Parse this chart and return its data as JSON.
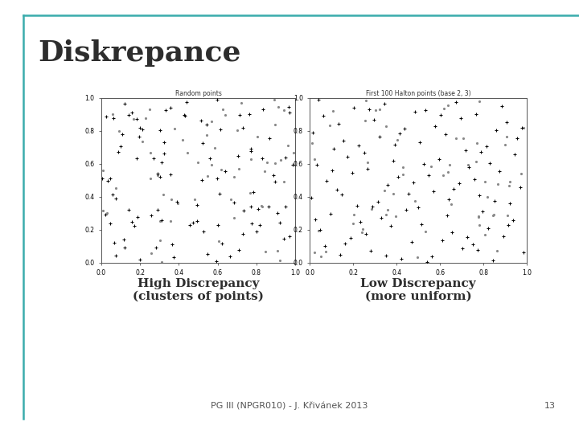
{
  "title": "Diskrepance",
  "title_fontsize": 26,
  "title_color": "#2d2d2d",
  "footer_text": "PG III (NPGR010) - J. Křivánek 2013",
  "footer_page": "13",
  "label_left": "High Discrepancy\n(clusters of points)",
  "label_right": "Low Discrepancy\n(more uniform)",
  "label_fontsize": 11,
  "plot_title_left": "Random points",
  "plot_title_right": "First 100 Halton points (base 2, 3)",
  "background_color": "#ffffff",
  "accent_color": "#3aacac",
  "seed_random": 42,
  "n_points": 100
}
